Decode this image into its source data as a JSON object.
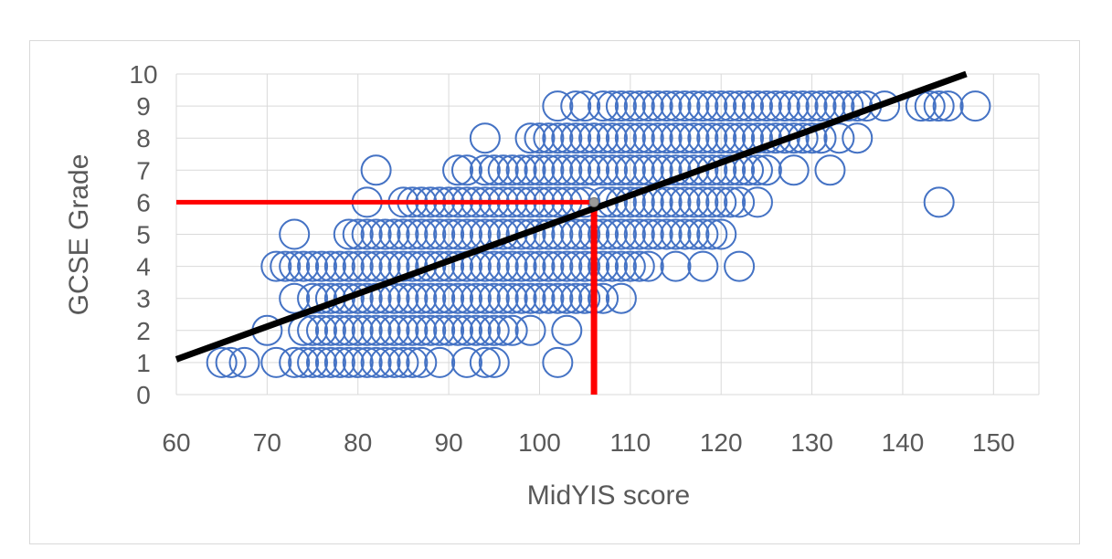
{
  "chart_data": {
    "type": "scatter",
    "title": "",
    "xlabel": "MidYIS score",
    "ylabel": "GCSE Grade",
    "xlim": [
      60,
      155
    ],
    "ylim": [
      0,
      10
    ],
    "x_ticks": [
      "60",
      "70",
      "80",
      "90",
      "100",
      "110",
      "120",
      "130",
      "140",
      "150"
    ],
    "y_ticks": [
      "0",
      "1",
      "2",
      "3",
      "4",
      "5",
      "6",
      "7",
      "8",
      "9",
      "10"
    ],
    "grid": true,
    "legend": "none",
    "marker": "hollow-circle",
    "colors": {
      "points": "#4472c4",
      "trendline": "#000000",
      "highlight": "#ff0000",
      "grid": "#d9d9d9",
      "text": "#595959"
    },
    "trendline": {
      "x": [
        60,
        147
      ],
      "y": [
        1.1,
        10.0
      ]
    },
    "highlight": {
      "x": 106,
      "y": 6
    },
    "points": [
      [
        65,
        1
      ],
      [
        66,
        1
      ],
      [
        67.5,
        1
      ],
      [
        71,
        1
      ],
      [
        73,
        1
      ],
      [
        74,
        1
      ],
      [
        75,
        1
      ],
      [
        76,
        1
      ],
      [
        77,
        1
      ],
      [
        78,
        1
      ],
      [
        79,
        1
      ],
      [
        80,
        1
      ],
      [
        81,
        1
      ],
      [
        82,
        1
      ],
      [
        83,
        1
      ],
      [
        84,
        1
      ],
      [
        85,
        1
      ],
      [
        86,
        1
      ],
      [
        87,
        1
      ],
      [
        89,
        1
      ],
      [
        92,
        1
      ],
      [
        94,
        1
      ],
      [
        95,
        1
      ],
      [
        102,
        1
      ],
      [
        70,
        2
      ],
      [
        74,
        2
      ],
      [
        75,
        2
      ],
      [
        76,
        2
      ],
      [
        77,
        2
      ],
      [
        78,
        2
      ],
      [
        79,
        2
      ],
      [
        80,
        2
      ],
      [
        81,
        2
      ],
      [
        82,
        2
      ],
      [
        83,
        2
      ],
      [
        84,
        2
      ],
      [
        85,
        2
      ],
      [
        86,
        2
      ],
      [
        87,
        2
      ],
      [
        88,
        2
      ],
      [
        89,
        2
      ],
      [
        90,
        2
      ],
      [
        91,
        2
      ],
      [
        92,
        2
      ],
      [
        93,
        2
      ],
      [
        94,
        2
      ],
      [
        95,
        2
      ],
      [
        96,
        2
      ],
      [
        97,
        2
      ],
      [
        99,
        2
      ],
      [
        103,
        2
      ],
      [
        73,
        3
      ],
      [
        75,
        3
      ],
      [
        76,
        3
      ],
      [
        77,
        3
      ],
      [
        78,
        3
      ],
      [
        79,
        3
      ],
      [
        80,
        3
      ],
      [
        81,
        3
      ],
      [
        82,
        3
      ],
      [
        83,
        3
      ],
      [
        84,
        3
      ],
      [
        85,
        3
      ],
      [
        86,
        3
      ],
      [
        87,
        3
      ],
      [
        88,
        3
      ],
      [
        89,
        3
      ],
      [
        90,
        3
      ],
      [
        91,
        3
      ],
      [
        92,
        3
      ],
      [
        93,
        3
      ],
      [
        94,
        3
      ],
      [
        95,
        3
      ],
      [
        96,
        3
      ],
      [
        97,
        3
      ],
      [
        98,
        3
      ],
      [
        99,
        3
      ],
      [
        100,
        3
      ],
      [
        101,
        3
      ],
      [
        102,
        3
      ],
      [
        103,
        3
      ],
      [
        104,
        3
      ],
      [
        105,
        3
      ],
      [
        106,
        3
      ],
      [
        107,
        3
      ],
      [
        109,
        3
      ],
      [
        71,
        4
      ],
      [
        72,
        4
      ],
      [
        73,
        4
      ],
      [
        74,
        4
      ],
      [
        75,
        4
      ],
      [
        76,
        4
      ],
      [
        77,
        4
      ],
      [
        78,
        4
      ],
      [
        79,
        4
      ],
      [
        80,
        4
      ],
      [
        81,
        4
      ],
      [
        82,
        4
      ],
      [
        83,
        4
      ],
      [
        84,
        4
      ],
      [
        85,
        4
      ],
      [
        86,
        4
      ],
      [
        87,
        4
      ],
      [
        88,
        4
      ],
      [
        89,
        4
      ],
      [
        90,
        4
      ],
      [
        91,
        4
      ],
      [
        92,
        4
      ],
      [
        93,
        4
      ],
      [
        94,
        4
      ],
      [
        95,
        4
      ],
      [
        96,
        4
      ],
      [
        97,
        4
      ],
      [
        98,
        4
      ],
      [
        99,
        4
      ],
      [
        100,
        4
      ],
      [
        101,
        4
      ],
      [
        102,
        4
      ],
      [
        103,
        4
      ],
      [
        104,
        4
      ],
      [
        105,
        4
      ],
      [
        106,
        4
      ],
      [
        107,
        4
      ],
      [
        108,
        4
      ],
      [
        109,
        4
      ],
      [
        110,
        4
      ],
      [
        111,
        4
      ],
      [
        112,
        4
      ],
      [
        115,
        4
      ],
      [
        118,
        4
      ],
      [
        122,
        4
      ],
      [
        73,
        5
      ],
      [
        79,
        5
      ],
      [
        80,
        5
      ],
      [
        81,
        5
      ],
      [
        82,
        5
      ],
      [
        83,
        5
      ],
      [
        84,
        5
      ],
      [
        85,
        5
      ],
      [
        86,
        5
      ],
      [
        87,
        5
      ],
      [
        88,
        5
      ],
      [
        89,
        5
      ],
      [
        90,
        5
      ],
      [
        91,
        5
      ],
      [
        92,
        5
      ],
      [
        93,
        5
      ],
      [
        94,
        5
      ],
      [
        95,
        5
      ],
      [
        96,
        5
      ],
      [
        97,
        5
      ],
      [
        98,
        5
      ],
      [
        99,
        5
      ],
      [
        100,
        5
      ],
      [
        101,
        5
      ],
      [
        102,
        5
      ],
      [
        103,
        5
      ],
      [
        104,
        5
      ],
      [
        105,
        5
      ],
      [
        106,
        5
      ],
      [
        107,
        5
      ],
      [
        108,
        5
      ],
      [
        109,
        5
      ],
      [
        110,
        5
      ],
      [
        111,
        5
      ],
      [
        112,
        5
      ],
      [
        113,
        5
      ],
      [
        114,
        5
      ],
      [
        115,
        5
      ],
      [
        116,
        5
      ],
      [
        117,
        5
      ],
      [
        118,
        5
      ],
      [
        119,
        5
      ],
      [
        120,
        5
      ],
      [
        81,
        6
      ],
      [
        85,
        6
      ],
      [
        86,
        6
      ],
      [
        87,
        6
      ],
      [
        88,
        6
      ],
      [
        89,
        6
      ],
      [
        90,
        6
      ],
      [
        91,
        6
      ],
      [
        92,
        6
      ],
      [
        93,
        6
      ],
      [
        94,
        6
      ],
      [
        95,
        6
      ],
      [
        96,
        6
      ],
      [
        97,
        6
      ],
      [
        98,
        6
      ],
      [
        99,
        6
      ],
      [
        100,
        6
      ],
      [
        101,
        6
      ],
      [
        102,
        6
      ],
      [
        103,
        6
      ],
      [
        104,
        6
      ],
      [
        105,
        6
      ],
      [
        107,
        6
      ],
      [
        108,
        6
      ],
      [
        109,
        6
      ],
      [
        110,
        6
      ],
      [
        111,
        6
      ],
      [
        112,
        6
      ],
      [
        113,
        6
      ],
      [
        114,
        6
      ],
      [
        115,
        6
      ],
      [
        116,
        6
      ],
      [
        117,
        6
      ],
      [
        118,
        6
      ],
      [
        119,
        6
      ],
      [
        120,
        6
      ],
      [
        121,
        6
      ],
      [
        122,
        6
      ],
      [
        124,
        6
      ],
      [
        144,
        6
      ],
      [
        82,
        7
      ],
      [
        91,
        7
      ],
      [
        92,
        7
      ],
      [
        94,
        7
      ],
      [
        95,
        7
      ],
      [
        96,
        7
      ],
      [
        97,
        7
      ],
      [
        98,
        7
      ],
      [
        99,
        7
      ],
      [
        100,
        7
      ],
      [
        101,
        7
      ],
      [
        102,
        7
      ],
      [
        103,
        7
      ],
      [
        104,
        7
      ],
      [
        105,
        7
      ],
      [
        106,
        7
      ],
      [
        107,
        7
      ],
      [
        108,
        7
      ],
      [
        109,
        7
      ],
      [
        110,
        7
      ],
      [
        111,
        7
      ],
      [
        112,
        7
      ],
      [
        113,
        7
      ],
      [
        114,
        7
      ],
      [
        115,
        7
      ],
      [
        116,
        7
      ],
      [
        117,
        7
      ],
      [
        118,
        7
      ],
      [
        119,
        7
      ],
      [
        120,
        7
      ],
      [
        121,
        7
      ],
      [
        122,
        7
      ],
      [
        123,
        7
      ],
      [
        124,
        7
      ],
      [
        125,
        7
      ],
      [
        128,
        7
      ],
      [
        132,
        7
      ],
      [
        94,
        8
      ],
      [
        99,
        8
      ],
      [
        100,
        8
      ],
      [
        101,
        8
      ],
      [
        102,
        8
      ],
      [
        103,
        8
      ],
      [
        104,
        8
      ],
      [
        105,
        8
      ],
      [
        106,
        8
      ],
      [
        107,
        8
      ],
      [
        108,
        8
      ],
      [
        109,
        8
      ],
      [
        110,
        8
      ],
      [
        111,
        8
      ],
      [
        112,
        8
      ],
      [
        113,
        8
      ],
      [
        114,
        8
      ],
      [
        115,
        8
      ],
      [
        116,
        8
      ],
      [
        117,
        8
      ],
      [
        118,
        8
      ],
      [
        119,
        8
      ],
      [
        120,
        8
      ],
      [
        121,
        8
      ],
      [
        122,
        8
      ],
      [
        123,
        8
      ],
      [
        124,
        8
      ],
      [
        125,
        8
      ],
      [
        126,
        8
      ],
      [
        127,
        8
      ],
      [
        128,
        8
      ],
      [
        129,
        8
      ],
      [
        130,
        8
      ],
      [
        131,
        8
      ],
      [
        133,
        8
      ],
      [
        135,
        8
      ],
      [
        102,
        9
      ],
      [
        104,
        9
      ],
      [
        105,
        9
      ],
      [
        107,
        9
      ],
      [
        108,
        9
      ],
      [
        109,
        9
      ],
      [
        110,
        9
      ],
      [
        111,
        9
      ],
      [
        112,
        9
      ],
      [
        113,
        9
      ],
      [
        114,
        9
      ],
      [
        115,
        9
      ],
      [
        116,
        9
      ],
      [
        117,
        9
      ],
      [
        118,
        9
      ],
      [
        119,
        9
      ],
      [
        120,
        9
      ],
      [
        121,
        9
      ],
      [
        122,
        9
      ],
      [
        123,
        9
      ],
      [
        124,
        9
      ],
      [
        125,
        9
      ],
      [
        126,
        9
      ],
      [
        127,
        9
      ],
      [
        128,
        9
      ],
      [
        129,
        9
      ],
      [
        130,
        9
      ],
      [
        131,
        9
      ],
      [
        132,
        9
      ],
      [
        133,
        9
      ],
      [
        134,
        9
      ],
      [
        135,
        9
      ],
      [
        136,
        9
      ],
      [
        138,
        9
      ],
      [
        142,
        9
      ],
      [
        143,
        9
      ],
      [
        144,
        9
      ],
      [
        145,
        9
      ],
      [
        148,
        9
      ]
    ]
  }
}
